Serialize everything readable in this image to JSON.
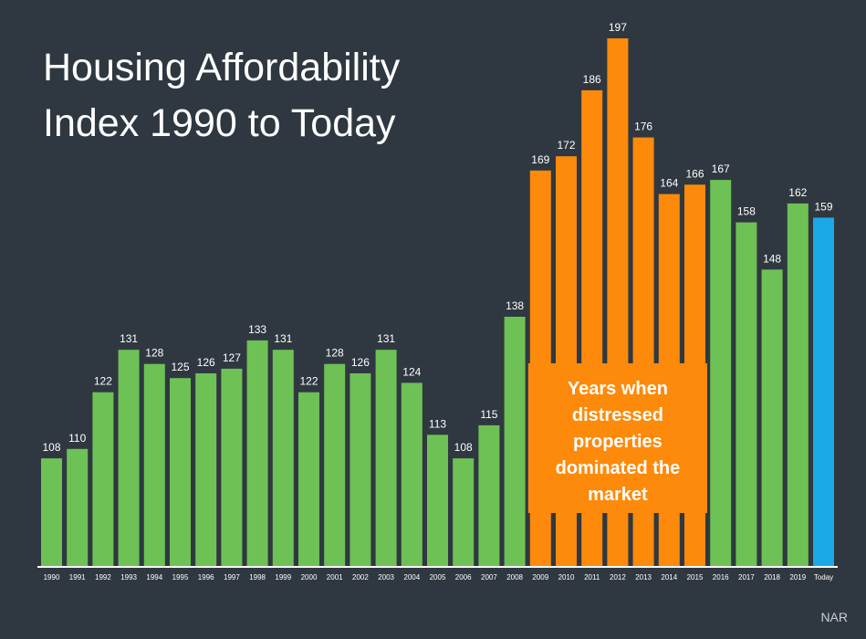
{
  "title_line1": "Housing Affordability",
  "title_line2": "Index 1990 to Today",
  "source": "NAR",
  "colors": {
    "background": "#2f3840",
    "normal": "#6ec154",
    "distressed": "#fd8a0a",
    "today": "#1ba8e6",
    "axis": "#ffffff",
    "label": "#ffffff"
  },
  "chart_data": {
    "type": "bar",
    "title": "Housing Affordability Index 1990 to Today",
    "xlabel": "",
    "ylabel": "",
    "ylim": [
      85,
      200
    ],
    "grid": false,
    "legend": "none",
    "categories": [
      "1990",
      "1991",
      "1992",
      "1993",
      "1994",
      "1995",
      "1996",
      "1997",
      "1998",
      "1999",
      "2000",
      "2001",
      "2002",
      "2003",
      "2004",
      "2005",
      "2006",
      "2007",
      "2008",
      "2009",
      "2010",
      "2011",
      "2012",
      "2013",
      "2014",
      "2015",
      "2016",
      "2017",
      "2018",
      "2019",
      "Today"
    ],
    "values": [
      108,
      110,
      122,
      131,
      128,
      125,
      126,
      127,
      133,
      131,
      122,
      128,
      126,
      131,
      124,
      113,
      108,
      115,
      138,
      169,
      172,
      186,
      197,
      176,
      164,
      166,
      167,
      158,
      148,
      162,
      159
    ],
    "bar_groups": [
      "normal",
      "normal",
      "normal",
      "normal",
      "normal",
      "normal",
      "normal",
      "normal",
      "normal",
      "normal",
      "normal",
      "normal",
      "normal",
      "normal",
      "normal",
      "normal",
      "normal",
      "normal",
      "normal",
      "distressed",
      "distressed",
      "distressed",
      "distressed",
      "distressed",
      "distressed",
      "distressed",
      "normal",
      "normal",
      "normal",
      "normal",
      "today"
    ],
    "annotation": {
      "lines": [
        "Years when",
        "distressed",
        "properties",
        "dominated the",
        "market"
      ],
      "color": "#fd8a0a"
    }
  }
}
